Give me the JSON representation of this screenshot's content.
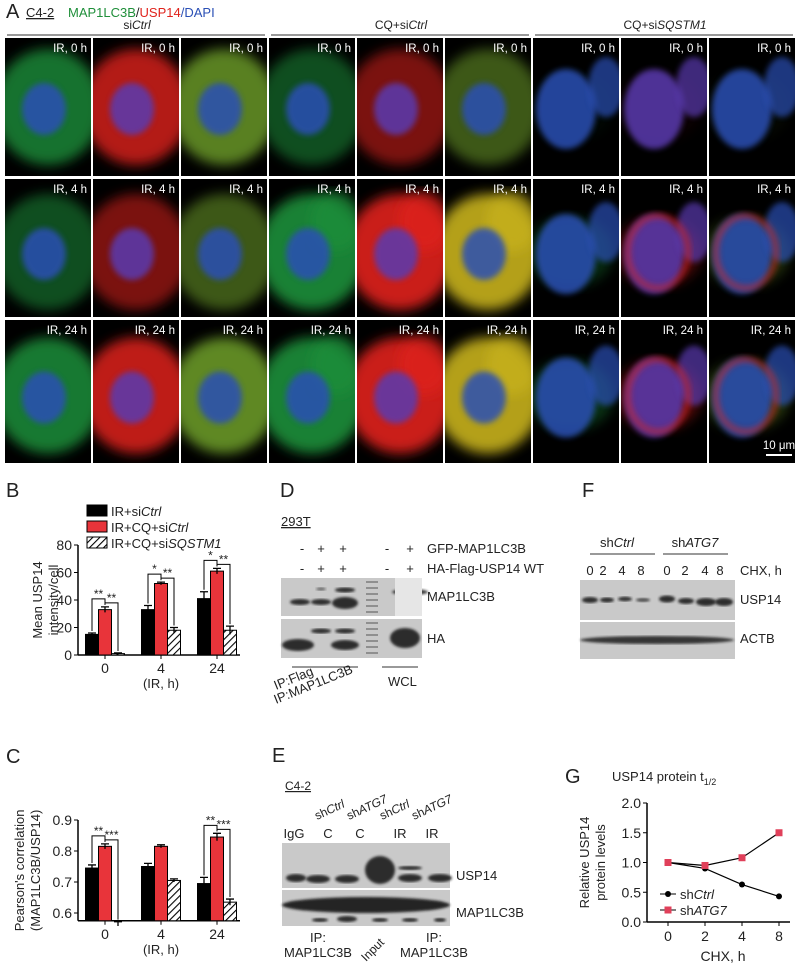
{
  "panel_letters": {
    "a": "A",
    "b": "B",
    "c": "C",
    "d": "D",
    "e": "E",
    "f": "F",
    "g": "G"
  },
  "panel_a": {
    "cell_line": "C4-2",
    "stain": {
      "lc3": "MAP1LC3B",
      "sep": "/",
      "usp14": "USP14",
      "dapi": "/DAPI"
    },
    "colors": {
      "lc3": "#1f8f3a",
      "usp14": "#e0231c",
      "dapi": "#2a4fb5"
    },
    "groups": [
      {
        "prefix": "si",
        "italic": "Ctrl"
      },
      {
        "prefix": "CQ+si",
        "italic": "Ctrl"
      },
      {
        "prefix": "CQ+si",
        "italic": "SQSTM1"
      }
    ],
    "time_labels": [
      "IR, 0 h",
      "IR, 4 h",
      "IR, 24 h"
    ],
    "scale_bar": "10 μm"
  },
  "chart_data": [
    {
      "id": "B",
      "type": "bar",
      "categories": [
        "0",
        "4",
        "24"
      ],
      "xlabel": "(IR, h)",
      "ylabel": [
        "Mean USP14",
        "intensity/cell"
      ],
      "ylim": [
        0,
        80
      ],
      "yticks": [
        0,
        20,
        40,
        60,
        80
      ],
      "legend": "top",
      "series": [
        {
          "name": "IR+si",
          "name_italic": "Ctrl",
          "color": "#000000",
          "fill": "solid",
          "values": [
            15,
            33,
            41
          ],
          "errors": [
            1,
            3,
            5
          ]
        },
        {
          "name": "IR+CQ+si",
          "name_italic": "Ctrl",
          "color": "#e8343a",
          "fill": "solid",
          "values": [
            33,
            52,
            61
          ],
          "errors": [
            2,
            1,
            2
          ]
        },
        {
          "name": "IR+CQ+si",
          "name_italic": "SQSTM1",
          "color": "#000000",
          "fill": "hatched",
          "values": [
            1,
            18,
            18
          ],
          "errors": [
            0.5,
            2,
            3
          ]
        }
      ],
      "significance": [
        {
          "category": 0,
          "pair": [
            0,
            1
          ],
          "label": "**"
        },
        {
          "category": 0,
          "pair": [
            1,
            2
          ],
          "label": "**"
        },
        {
          "category": 1,
          "pair": [
            0,
            1
          ],
          "label": "*"
        },
        {
          "category": 1,
          "pair": [
            1,
            2
          ],
          "label": "**"
        },
        {
          "category": 2,
          "pair": [
            0,
            1
          ],
          "label": "*"
        },
        {
          "category": 2,
          "pair": [
            1,
            2
          ],
          "label": "**"
        }
      ]
    },
    {
      "id": "C",
      "type": "bar",
      "categories": [
        "0",
        "4",
        "24"
      ],
      "xlabel": "(IR, h)",
      "ylabel": [
        "Pearson's correlation",
        "(MAP1LC3B/USP14)"
      ],
      "ylim": [
        0.575,
        0.9
      ],
      "yticks": [
        0.6,
        0.7,
        0.8,
        0.9
      ],
      "series": [
        {
          "color": "#000000",
          "fill": "solid",
          "values": [
            0.745,
            0.75,
            0.695
          ],
          "errors": [
            0.01,
            0.01,
            0.02
          ]
        },
        {
          "color": "#e8343a",
          "fill": "solid",
          "values": [
            0.815,
            0.815,
            0.845
          ],
          "errors": [
            0.008,
            0.005,
            0.012
          ]
        },
        {
          "color": "#000000",
          "fill": "hatched",
          "values": [
            0.565,
            0.705,
            0.635
          ],
          "errors": [
            0.007,
            0.005,
            0.01
          ]
        }
      ],
      "significance": [
        {
          "category": 0,
          "pair": [
            0,
            1
          ],
          "label": "**"
        },
        {
          "category": 0,
          "pair": [
            1,
            2
          ],
          "label": "***"
        },
        {
          "category": 2,
          "pair": [
            0,
            1
          ],
          "label": "**"
        },
        {
          "category": 2,
          "pair": [
            1,
            2
          ],
          "label": "***"
        }
      ]
    },
    {
      "id": "G",
      "type": "line",
      "title": "USP14 protein t",
      "title_sub": "1/2",
      "categories": [
        "0",
        "2",
        "4",
        "8"
      ],
      "xlabel": "CHX, h",
      "ylabel": [
        "Relative USP14",
        "protein levels"
      ],
      "ylim": [
        0,
        2
      ],
      "yticks": [
        "0.0",
        "0.5",
        "1.0",
        "1.5",
        "2.0"
      ],
      "legend": "bottom-left",
      "series": [
        {
          "name": "sh",
          "name_italic": "Ctrl",
          "color": "#000000",
          "marker": "circle",
          "values": [
            1.0,
            0.9,
            0.63,
            0.43
          ]
        },
        {
          "name": "sh",
          "name_italic": "ATG7",
          "color": "#e0405a",
          "marker": "square",
          "values": [
            1.0,
            0.95,
            1.08,
            1.5
          ]
        }
      ]
    }
  ],
  "panel_d": {
    "cell_line": "293T",
    "row1": {
      "signs": [
        "-",
        "+",
        "+",
        "-",
        "+"
      ],
      "label": "GFP-MAP1LC3B"
    },
    "row2": {
      "signs": [
        "-",
        "+",
        "+",
        "-",
        "+"
      ],
      "label": "HA-Flag-USP14 WT"
    },
    "blots": [
      "MAP1LC3B",
      "HA"
    ],
    "ip_labels": [
      "IP:Flag",
      "IP:MAP1LC3B"
    ],
    "wcl": "WCL"
  },
  "panel_e": {
    "cell_line": "C4-2",
    "lane_headers": [
      {
        "prefix": "sh",
        "italic": "Ctrl"
      },
      {
        "prefix": "sh",
        "italic": "ATG7"
      },
      {
        "prefix": "sh",
        "italic": "Ctrl"
      },
      {
        "prefix": "sh",
        "italic": "ATG7"
      }
    ],
    "lane_labels": [
      "IgG",
      "C",
      "C",
      "IR",
      "IR"
    ],
    "blots": [
      "USP14",
      "MAP1LC3B"
    ],
    "ip_left": [
      "IP:",
      "MAP1LC3B"
    ],
    "input": "Input",
    "ip_right": [
      "IP:",
      "MAP1LC3B"
    ]
  },
  "panel_f": {
    "groups": [
      {
        "prefix": "sh",
        "italic": "Ctrl"
      },
      {
        "prefix": "sh",
        "italic": "ATG7"
      }
    ],
    "times": [
      "0",
      "2",
      "4",
      "8",
      "0",
      "2",
      "4",
      "8"
    ],
    "time_label": "CHX, h",
    "blots": [
      "USP14",
      "ACTB"
    ]
  }
}
